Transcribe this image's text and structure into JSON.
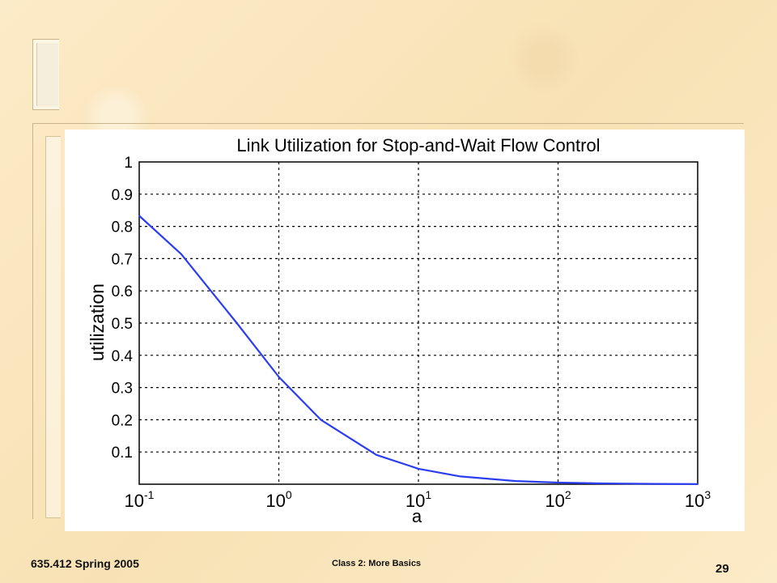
{
  "chart_data": {
    "type": "line",
    "title": "Link Utilization for Stop-and-Wait Flow Control",
    "xlabel": "a",
    "ylabel": "utilization",
    "xscale": "log",
    "xlim": [
      0.1,
      1000
    ],
    "ylim": [
      0,
      1
    ],
    "grid": true,
    "x_ticks": [
      {
        "value": 0.1,
        "base": "10",
        "exp": "-1"
      },
      {
        "value": 1,
        "base": "10",
        "exp": "0"
      },
      {
        "value": 10,
        "base": "10",
        "exp": "1"
      },
      {
        "value": 100,
        "base": "10",
        "exp": "2"
      },
      {
        "value": 1000,
        "base": "10",
        "exp": "3"
      }
    ],
    "y_ticks": [
      "0.1",
      "0.2",
      "0.3",
      "0.4",
      "0.5",
      "0.6",
      "0.7",
      "0.8",
      "0.9",
      "1"
    ],
    "line_color": "#2b3df0",
    "series": [
      {
        "x": [
          0.1,
          0.2,
          0.5,
          1,
          2,
          5,
          10,
          20,
          50,
          100,
          200,
          500,
          1000
        ],
        "values": [
          0.833,
          0.714,
          0.5,
          0.333,
          0.2,
          0.091,
          0.048,
          0.024,
          0.0099,
          0.005,
          0.0025,
          0.001,
          0.0005
        ]
      }
    ]
  },
  "footer": {
    "course": "635.412 Spring 2005",
    "subtitle": "Class 2:  More Basics",
    "page_number": "29"
  }
}
